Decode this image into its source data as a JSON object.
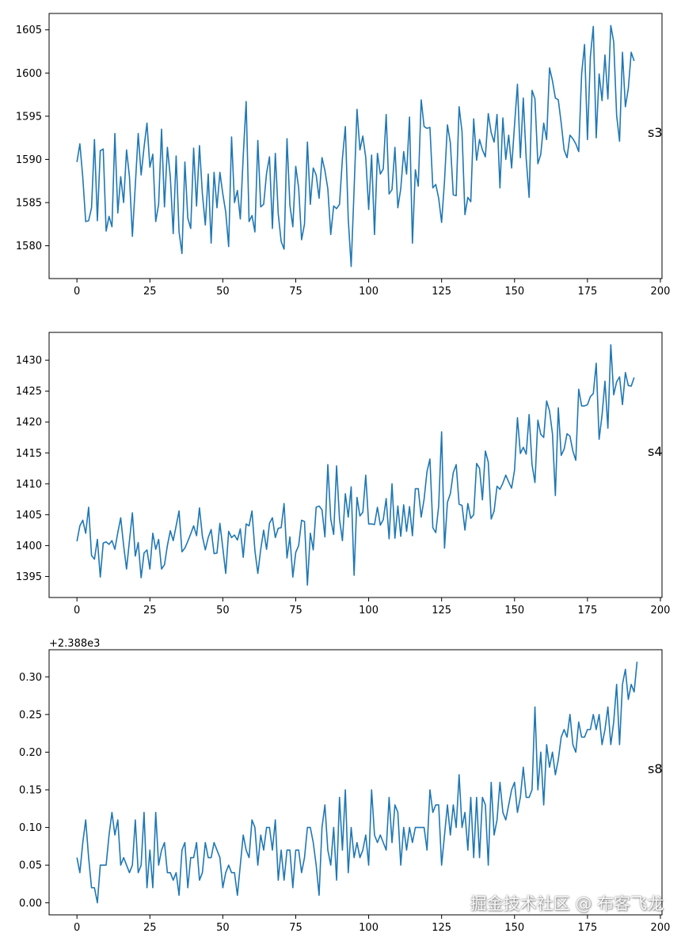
{
  "chart_data": [
    {
      "type": "line",
      "name": "s3",
      "side_label": "s3",
      "color": "#1f77b4",
      "x_start": 0,
      "x_step": 1,
      "xlim": [
        -9.55,
        200.55
      ],
      "ylim": [
        1576.2,
        1606.9
      ],
      "x_ticks": [
        0,
        25,
        50,
        75,
        100,
        125,
        150,
        175,
        200
      ],
      "y_ticks": [
        1580,
        1585,
        1590,
        1595,
        1600,
        1605
      ],
      "values": [
        1589.7,
        1591.8,
        1587.9,
        1582.8,
        1582.9,
        1584.4,
        1592.3,
        1582.9,
        1591.0,
        1591.2,
        1581.7,
        1583.4,
        1582.2,
        1593.0,
        1583.8,
        1588.0,
        1585.0,
        1591.1,
        1588.0,
        1581.1,
        1587.0,
        1593.0,
        1588.2,
        1591.4,
        1594.2,
        1589.1,
        1590.6,
        1582.8,
        1584.8,
        1593.5,
        1584.5,
        1591.4,
        1588.0,
        1581.4,
        1590.4,
        1581.6,
        1579.1,
        1589.7,
        1583.2,
        1582.0,
        1591.3,
        1584.6,
        1591.6,
        1586.0,
        1582.4,
        1588.3,
        1580.3,
        1588.5,
        1584.4,
        1588.5,
        1586.0,
        1583.9,
        1579.9,
        1592.6,
        1585.0,
        1586.4,
        1583.1,
        1590.4,
        1596.7,
        1582.8,
        1583.5,
        1581.6,
        1592.2,
        1584.5,
        1584.8,
        1588.4,
        1590.3,
        1582.0,
        1590.7,
        1583.7,
        1580.5,
        1579.6,
        1592.4,
        1584.7,
        1582.2,
        1589.2,
        1586.7,
        1580.7,
        1582.5,
        1592.0,
        1584.8,
        1589.0,
        1588.2,
        1585.5,
        1590.2,
        1588.7,
        1586.6,
        1581.3,
        1584.6,
        1584.3,
        1584.8,
        1590.1,
        1593.8,
        1583.1,
        1577.6,
        1586.5,
        1595.8,
        1591.1,
        1592.7,
        1590.2,
        1584.2,
        1590.5,
        1581.3,
        1590.7,
        1588.3,
        1588.9,
        1595.2,
        1586.0,
        1586.5,
        1591.4,
        1584.4,
        1586.6,
        1590.9,
        1588.3,
        1594.9,
        1580.3,
        1588.8,
        1586.9,
        1596.9,
        1593.8,
        1593.6,
        1593.7,
        1586.7,
        1587.1,
        1585.5,
        1582.7,
        1587.5,
        1594.0,
        1591.9,
        1585.9,
        1585.8,
        1596.1,
        1593.2,
        1583.6,
        1585.6,
        1585.1,
        1594.7,
        1589.9,
        1592.3,
        1591.1,
        1590.3,
        1595.3,
        1593.1,
        1592.0,
        1595.2,
        1586.7,
        1594.8,
        1590.0,
        1592.8,
        1589.0,
        1594.0,
        1598.7,
        1590.2,
        1597.1,
        1590.1,
        1585.6,
        1598.0,
        1597.0,
        1589.5,
        1590.6,
        1594.2,
        1592.3,
        1600.6,
        1599.1,
        1597.1,
        1596.9,
        1594.2,
        1591.1,
        1590.2,
        1592.8,
        1592.4,
        1591.8,
        1590.9,
        1599.9,
        1603.3,
        1592.3,
        1601.9,
        1605.4,
        1592.5,
        1599.9,
        1596.8,
        1602.1,
        1597.0,
        1605.5,
        1603.6,
        1595.1,
        1592.1,
        1602.4,
        1596.1,
        1598.2,
        1602.4,
        1601.4
      ]
    },
    {
      "type": "line",
      "name": "s4",
      "side_label": "s4",
      "color": "#1f77b4",
      "x_start": 0,
      "x_step": 1,
      "xlim": [
        -9.55,
        200.55
      ],
      "ylim": [
        1391.6,
        1434.5
      ],
      "x_ticks": [
        0,
        25,
        50,
        75,
        100,
        125,
        150,
        175,
        200
      ],
      "y_ticks": [
        1395,
        1400,
        1405,
        1410,
        1415,
        1420,
        1425,
        1430
      ],
      "values": [
        1400.7,
        1403.2,
        1404.1,
        1402.0,
        1406.2,
        1398.4,
        1397.8,
        1401.0,
        1394.9,
        1400.4,
        1400.6,
        1400.2,
        1400.8,
        1399.4,
        1402.1,
        1404.5,
        1400.0,
        1396.2,
        1400.8,
        1405.3,
        1398.3,
        1400.5,
        1394.8,
        1398.8,
        1399.3,
        1396.2,
        1402.0,
        1399.4,
        1401.0,
        1396.2,
        1396.9,
        1400.0,
        1402.4,
        1400.8,
        1403.2,
        1405.6,
        1399.0,
        1399.6,
        1400.7,
        1401.9,
        1403.2,
        1401.6,
        1406.1,
        1401.5,
        1399.3,
        1401.3,
        1402.6,
        1398.7,
        1398.8,
        1403.6,
        1399.6,
        1395.5,
        1402.3,
        1401.3,
        1401.7,
        1400.9,
        1402.7,
        1398.1,
        1403.5,
        1403.2,
        1405.6,
        1399.2,
        1395.5,
        1399.4,
        1402.5,
        1399.4,
        1403.6,
        1404.5,
        1401.3,
        1402.8,
        1402.9,
        1406.8,
        1398.0,
        1401.4,
        1394.9,
        1398.9,
        1400.0,
        1404.1,
        1403.9,
        1393.6,
        1402.0,
        1399.3,
        1406.2,
        1406.4,
        1405.8,
        1401.4,
        1413.1,
        1404.3,
        1401.8,
        1412.9,
        1404.3,
        1400.8,
        1408.4,
        1404.6,
        1409.5,
        1395.2,
        1407.8,
        1404.8,
        1405.4,
        1411.4,
        1403.5,
        1403.5,
        1403.4,
        1406.2,
        1403.3,
        1404.2,
        1407.6,
        1401.1,
        1410.0,
        1401.2,
        1406.4,
        1401.5,
        1406.6,
        1402.3,
        1406.3,
        1401.6,
        1409.2,
        1409.2,
        1404.6,
        1407.5,
        1412.0,
        1414.0,
        1402.9,
        1402.1,
        1406.4,
        1418.4,
        1399.6,
        1407.0,
        1408.4,
        1411.8,
        1413.1,
        1406.7,
        1406.5,
        1402.5,
        1406.8,
        1404.4,
        1405.0,
        1413.3,
        1412.5,
        1407.4,
        1415.3,
        1413.5,
        1404.3,
        1405.6,
        1409.6,
        1409.1,
        1410.1,
        1411.4,
        1410.3,
        1409.3,
        1412.2,
        1420.7,
        1414.9,
        1415.9,
        1414.8,
        1421.2,
        1413.1,
        1410.2,
        1420.3,
        1418.0,
        1417.5,
        1423.4,
        1421.8,
        1418.1,
        1408.1,
        1422.3,
        1414.6,
        1415.6,
        1418.1,
        1417.7,
        1415.3,
        1413.8,
        1425.3,
        1422.6,
        1422.6,
        1422.8,
        1424.1,
        1424.6,
        1429.5,
        1417.2,
        1421.1,
        1426.6,
        1419.0,
        1432.5,
        1424.4,
        1426.5,
        1427.3,
        1422.8,
        1428.0,
        1425.9,
        1425.8,
        1427.2
      ]
    },
    {
      "type": "line",
      "name": "s8",
      "side_label": "s8",
      "color": "#1f77b4",
      "offset_text": "+2.388e3",
      "offset": 2388,
      "x_start": 0,
      "x_step": 1,
      "xlim": [
        -9.55,
        200.55
      ],
      "ylim": [
        -0.016,
        0.336
      ],
      "x_ticks": [
        0,
        25,
        50,
        75,
        100,
        125,
        150,
        175,
        200
      ],
      "y_ticks": [
        0.0,
        0.05,
        0.1,
        0.15,
        0.2,
        0.25,
        0.3
      ],
      "values": [
        0.06,
        0.04,
        0.08,
        0.11,
        0.06,
        0.02,
        0.02,
        0.0,
        0.05,
        0.05,
        0.05,
        0.09,
        0.12,
        0.09,
        0.11,
        0.05,
        0.06,
        0.05,
        0.04,
        0.05,
        0.11,
        0.04,
        0.05,
        0.12,
        0.02,
        0.07,
        0.02,
        0.12,
        0.05,
        0.07,
        0.08,
        0.04,
        0.04,
        0.03,
        0.04,
        0.01,
        0.07,
        0.08,
        0.02,
        0.06,
        0.06,
        0.08,
        0.03,
        0.04,
        0.08,
        0.06,
        0.06,
        0.08,
        0.07,
        0.06,
        0.02,
        0.04,
        0.05,
        0.04,
        0.04,
        0.01,
        0.05,
        0.09,
        0.07,
        0.06,
        0.11,
        0.1,
        0.05,
        0.09,
        0.07,
        0.1,
        0.1,
        0.07,
        0.11,
        0.03,
        0.07,
        0.03,
        0.07,
        0.07,
        0.02,
        0.07,
        0.07,
        0.04,
        0.06,
        0.1,
        0.1,
        0.08,
        0.05,
        0.01,
        0.1,
        0.13,
        0.07,
        0.05,
        0.1,
        0.03,
        0.14,
        0.07,
        0.15,
        0.04,
        0.1,
        0.06,
        0.08,
        0.06,
        0.07,
        0.09,
        0.05,
        0.15,
        0.09,
        0.08,
        0.09,
        0.08,
        0.07,
        0.14,
        0.08,
        0.13,
        0.12,
        0.05,
        0.1,
        0.07,
        0.1,
        0.08,
        0.1,
        0.1,
        0.1,
        0.1,
        0.07,
        0.15,
        0.12,
        0.13,
        0.13,
        0.05,
        0.09,
        0.13,
        0.09,
        0.13,
        0.1,
        0.17,
        0.1,
        0.12,
        0.07,
        0.14,
        0.06,
        0.14,
        0.06,
        0.14,
        0.13,
        0.05,
        0.16,
        0.09,
        0.11,
        0.16,
        0.12,
        0.11,
        0.13,
        0.15,
        0.16,
        0.12,
        0.14,
        0.18,
        0.14,
        0.14,
        0.15,
        0.26,
        0.15,
        0.2,
        0.13,
        0.21,
        0.18,
        0.2,
        0.17,
        0.19,
        0.22,
        0.23,
        0.22,
        0.25,
        0.21,
        0.2,
        0.24,
        0.22,
        0.22,
        0.23,
        0.23,
        0.25,
        0.23,
        0.25,
        0.21,
        0.23,
        0.26,
        0.21,
        0.24,
        0.29,
        0.21,
        0.29,
        0.31,
        0.27,
        0.29,
        0.28,
        0.32
      ]
    }
  ],
  "watermark": "掘金技术社区 @ 布客飞龙"
}
